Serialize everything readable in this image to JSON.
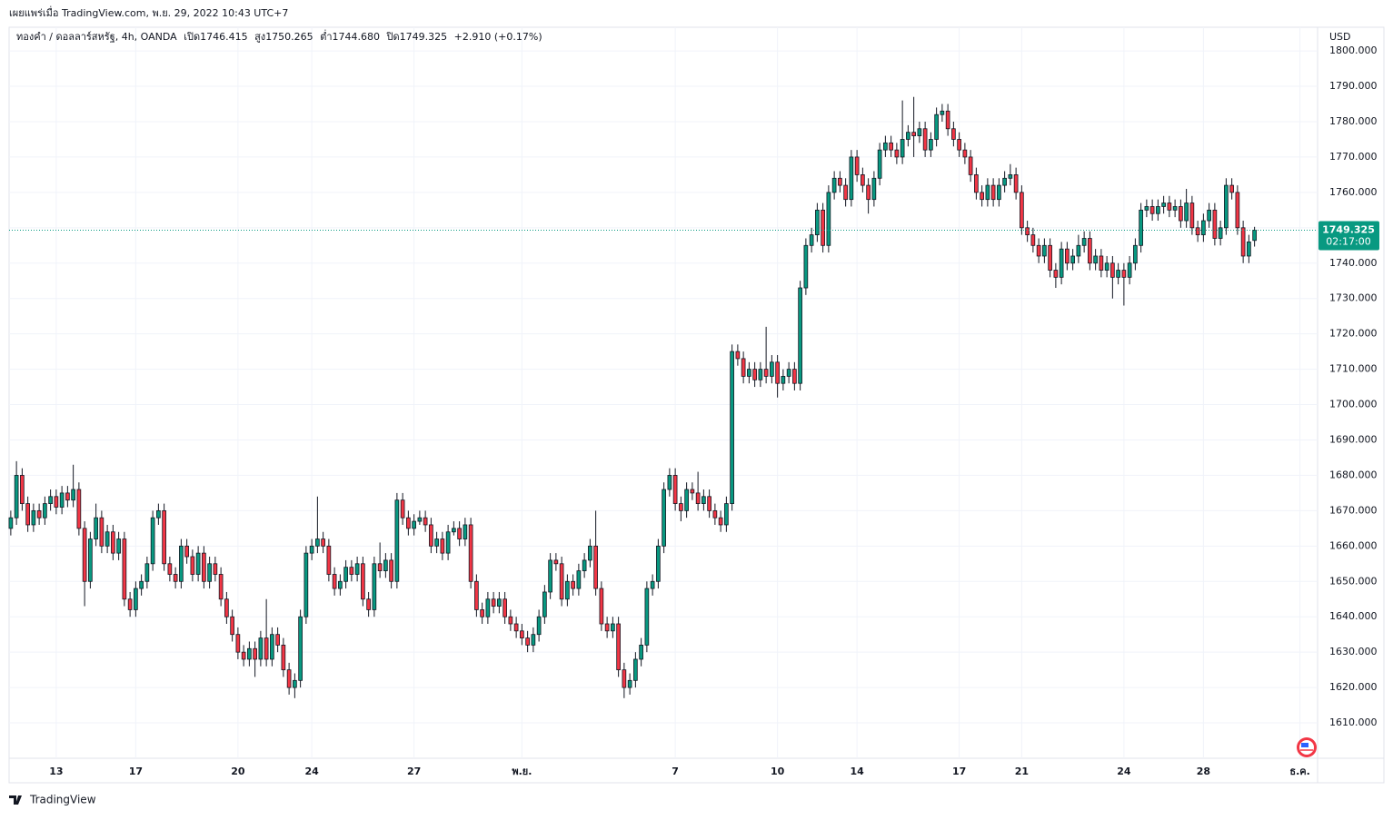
{
  "published": "เผยแพร่เมื่อ TradingView.com, พ.ย. 29, 2022 10:43 UTC+7",
  "header": {
    "symbol": "ทองคำ / ดอลลาร์สหรัฐ, 4h, OANDA",
    "open_label": "เปิด",
    "open": "1746.415",
    "high_label": "สูง",
    "high": "1750.265",
    "low_label": "ต่ำ",
    "low": "1744.680",
    "close_label": "ปิด",
    "close": "1749.325",
    "change": "+2.910 (+0.17%)"
  },
  "footer": "TradingView",
  "chart_data": {
    "type": "candlestick",
    "currency": "USD",
    "up_color": "#089981",
    "down_color": "#f23645",
    "grid": true,
    "last_price": 1749.325,
    "countdown": "02:17:00",
    "xlim": [
      -0.3,
      230.1
    ],
    "ylim": [
      1600,
      1806.7
    ],
    "xticks": [
      {
        "value": 8,
        "label": "13"
      },
      {
        "value": 22,
        "label": "17"
      },
      {
        "value": 40,
        "label": "20"
      },
      {
        "value": 53,
        "label": "24"
      },
      {
        "value": 71,
        "label": "27"
      },
      {
        "value": 90,
        "label": "พ.ย."
      },
      {
        "value": 117,
        "label": "7"
      },
      {
        "value": 135,
        "label": "10"
      },
      {
        "value": 149,
        "label": "14"
      },
      {
        "value": 167,
        "label": "17"
      },
      {
        "value": 178,
        "label": "21"
      },
      {
        "value": 196,
        "label": "24"
      },
      {
        "value": 210,
        "label": "28"
      },
      {
        "value": 227,
        "label": "ธ.ค."
      }
    ],
    "yticks": [
      {
        "value": 1610,
        "label": "1610.000"
      },
      {
        "value": 1620,
        "label": "1620.000"
      },
      {
        "value": 1630,
        "label": "1630.000"
      },
      {
        "value": 1640,
        "label": "1640.000"
      },
      {
        "value": 1650,
        "label": "1650.000"
      },
      {
        "value": 1660,
        "label": "1660.000"
      },
      {
        "value": 1670,
        "label": "1670.000"
      },
      {
        "value": 1680,
        "label": "1680.000"
      },
      {
        "value": 1690,
        "label": "1690.000"
      },
      {
        "value": 1700,
        "label": "1700.000"
      },
      {
        "value": 1710,
        "label": "1710.000"
      },
      {
        "value": 1720,
        "label": "1720.000"
      },
      {
        "value": 1730,
        "label": "1730.000"
      },
      {
        "value": 1740,
        "label": "1740.000"
      },
      {
        "value": 1750,
        "label": "1750.000"
      },
      {
        "value": 1760,
        "label": "1760.000"
      },
      {
        "value": 1770,
        "label": "1770.000"
      },
      {
        "value": 1780,
        "label": "1780.000"
      },
      {
        "value": 1790,
        "label": "1790.000"
      },
      {
        "value": 1800,
        "label": "1800.000"
      }
    ],
    "candles": [
      [
        1665,
        1670,
        1663,
        1668
      ],
      [
        1668,
        1684,
        1666,
        1680
      ],
      [
        1680,
        1682,
        1670,
        1672
      ],
      [
        1672,
        1674,
        1664,
        1666
      ],
      [
        1666,
        1672,
        1664,
        1670
      ],
      [
        1670,
        1672,
        1666,
        1668
      ],
      [
        1668,
        1674,
        1666,
        1672
      ],
      [
        1672,
        1676,
        1670,
        1674
      ],
      [
        1674,
        1676,
        1669,
        1671
      ],
      [
        1671,
        1677,
        1669,
        1675
      ],
      [
        1675,
        1677,
        1671,
        1673
      ],
      [
        1673,
        1683,
        1671,
        1676
      ],
      [
        1676,
        1678,
        1663,
        1665
      ],
      [
        1665,
        1667,
        1643,
        1650
      ],
      [
        1650,
        1664,
        1648,
        1662
      ],
      [
        1662,
        1672,
        1660,
        1668
      ],
      [
        1668,
        1670,
        1658,
        1660
      ],
      [
        1660,
        1666,
        1658,
        1664
      ],
      [
        1664,
        1666,
        1656,
        1658
      ],
      [
        1658,
        1664,
        1656,
        1662
      ],
      [
        1662,
        1664,
        1643,
        1645
      ],
      [
        1645,
        1647,
        1640,
        1642
      ],
      [
        1642,
        1650,
        1640,
        1648
      ],
      [
        1648,
        1652,
        1646,
        1650
      ],
      [
        1650,
        1657,
        1648,
        1655
      ],
      [
        1655,
        1670,
        1653,
        1668
      ],
      [
        1668,
        1672,
        1666,
        1670
      ],
      [
        1670,
        1672,
        1653,
        1655
      ],
      [
        1655,
        1657,
        1650,
        1652
      ],
      [
        1652,
        1654,
        1648,
        1650
      ],
      [
        1650,
        1662,
        1648,
        1660
      ],
      [
        1660,
        1662,
        1655,
        1657
      ],
      [
        1657,
        1659,
        1650,
        1652
      ],
      [
        1652,
        1660,
        1650,
        1658
      ],
      [
        1658,
        1660,
        1648,
        1650
      ],
      [
        1650,
        1657,
        1648,
        1655
      ],
      [
        1655,
        1657,
        1650,
        1652
      ],
      [
        1652,
        1654,
        1643,
        1645
      ],
      [
        1645,
        1647,
        1638,
        1640
      ],
      [
        1640,
        1642,
        1633,
        1635
      ],
      [
        1635,
        1637,
        1628,
        1630
      ],
      [
        1630,
        1632,
        1626,
        1628
      ],
      [
        1628,
        1633,
        1626,
        1631
      ],
      [
        1631,
        1633,
        1623,
        1628
      ],
      [
        1628,
        1636,
        1626,
        1634
      ],
      [
        1634,
        1645,
        1626,
        1628
      ],
      [
        1628,
        1637,
        1626,
        1635
      ],
      [
        1635,
        1637,
        1630,
        1632
      ],
      [
        1632,
        1634,
        1623,
        1625
      ],
      [
        1625,
        1627,
        1618,
        1620
      ],
      [
        1620,
        1624,
        1617,
        1622
      ],
      [
        1622,
        1642,
        1620,
        1640
      ],
      [
        1640,
        1660,
        1638,
        1658
      ],
      [
        1658,
        1662,
        1656,
        1660
      ],
      [
        1660,
        1674,
        1658,
        1662
      ],
      [
        1662,
        1664,
        1658,
        1660
      ],
      [
        1660,
        1662,
        1650,
        1652
      ],
      [
        1652,
        1654,
        1646,
        1648
      ],
      [
        1648,
        1652,
        1646,
        1650
      ],
      [
        1650,
        1656,
        1648,
        1654
      ],
      [
        1654,
        1656,
        1650,
        1652
      ],
      [
        1652,
        1657,
        1650,
        1655
      ],
      [
        1655,
        1657,
        1643,
        1645
      ],
      [
        1645,
        1647,
        1640,
        1642
      ],
      [
        1642,
        1657,
        1640,
        1655
      ],
      [
        1655,
        1661,
        1651,
        1653
      ],
      [
        1653,
        1658,
        1651,
        1656
      ],
      [
        1656,
        1658,
        1648,
        1650
      ],
      [
        1650,
        1675,
        1648,
        1673
      ],
      [
        1673,
        1675,
        1666,
        1668
      ],
      [
        1668,
        1670,
        1663,
        1665
      ],
      [
        1665,
        1669,
        1663,
        1667
      ],
      [
        1667,
        1670,
        1666,
        1668
      ],
      [
        1668,
        1670,
        1664,
        1666
      ],
      [
        1666,
        1668,
        1658,
        1660
      ],
      [
        1660,
        1664,
        1658,
        1662
      ],
      [
        1662,
        1664,
        1656,
        1658
      ],
      [
        1658,
        1666,
        1656,
        1664
      ],
      [
        1664,
        1667,
        1663,
        1665
      ],
      [
        1665,
        1667,
        1660,
        1662
      ],
      [
        1662,
        1668,
        1660,
        1666
      ],
      [
        1666,
        1668,
        1648,
        1650
      ],
      [
        1650,
        1652,
        1640,
        1642
      ],
      [
        1642,
        1644,
        1638,
        1640
      ],
      [
        1640,
        1647,
        1638,
        1645
      ],
      [
        1645,
        1647,
        1641,
        1643
      ],
      [
        1643,
        1647,
        1641,
        1645
      ],
      [
        1645,
        1647,
        1638,
        1640
      ],
      [
        1640,
        1642,
        1636,
        1638
      ],
      [
        1638,
        1640,
        1634,
        1636
      ],
      [
        1636,
        1638,
        1632,
        1634
      ],
      [
        1634,
        1636,
        1630,
        1632
      ],
      [
        1632,
        1637,
        1630,
        1635
      ],
      [
        1635,
        1642,
        1633,
        1640
      ],
      [
        1640,
        1649,
        1638,
        1647
      ],
      [
        1647,
        1658,
        1645,
        1656
      ],
      [
        1656,
        1658,
        1653,
        1655
      ],
      [
        1655,
        1657,
        1643,
        1645
      ],
      [
        1645,
        1652,
        1643,
        1650
      ],
      [
        1650,
        1652,
        1646,
        1648
      ],
      [
        1648,
        1655,
        1646,
        1653
      ],
      [
        1653,
        1658,
        1651,
        1656
      ],
      [
        1656,
        1662,
        1654,
        1660
      ],
      [
        1660,
        1670,
        1646,
        1648
      ],
      [
        1648,
        1650,
        1636,
        1638
      ],
      [
        1638,
        1640,
        1634,
        1636
      ],
      [
        1636,
        1640,
        1634,
        1638
      ],
      [
        1638,
        1640,
        1623,
        1625
      ],
      [
        1625,
        1627,
        1617,
        1620
      ],
      [
        1620,
        1624,
        1618,
        1622
      ],
      [
        1622,
        1630,
        1620,
        1628
      ],
      [
        1628,
        1634,
        1626,
        1632
      ],
      [
        1632,
        1650,
        1630,
        1648
      ],
      [
        1648,
        1652,
        1646,
        1650
      ],
      [
        1650,
        1662,
        1648,
        1660
      ],
      [
        1660,
        1678,
        1658,
        1676
      ],
      [
        1676,
        1682,
        1674,
        1680
      ],
      [
        1680,
        1682,
        1670,
        1672
      ],
      [
        1672,
        1674,
        1667,
        1670
      ],
      [
        1670,
        1678,
        1668,
        1676
      ],
      [
        1676,
        1678,
        1673,
        1675
      ],
      [
        1675,
        1681,
        1670,
        1672
      ],
      [
        1672,
        1676,
        1670,
        1674
      ],
      [
        1674,
        1676,
        1668,
        1670
      ],
      [
        1670,
        1672,
        1666,
        1668
      ],
      [
        1668,
        1670,
        1664,
        1666
      ],
      [
        1666,
        1674,
        1664,
        1672
      ],
      [
        1672,
        1717,
        1670,
        1715
      ],
      [
        1715,
        1717,
        1711,
        1713
      ],
      [
        1713,
        1715,
        1706,
        1708
      ],
      [
        1708,
        1712,
        1706,
        1710
      ],
      [
        1710,
        1712,
        1705,
        1707
      ],
      [
        1707,
        1712,
        1705,
        1710
      ],
      [
        1710,
        1722,
        1706,
        1708
      ],
      [
        1708,
        1714,
        1706,
        1712
      ],
      [
        1712,
        1714,
        1702,
        1706
      ],
      [
        1706,
        1710,
        1704,
        1708
      ],
      [
        1708,
        1712,
        1706,
        1710
      ],
      [
        1710,
        1712,
        1704,
        1706
      ],
      [
        1706,
        1735,
        1704,
        1733
      ],
      [
        1733,
        1747,
        1731,
        1745
      ],
      [
        1745,
        1750,
        1743,
        1748
      ],
      [
        1748,
        1757,
        1746,
        1755
      ],
      [
        1755,
        1757,
        1743,
        1745
      ],
      [
        1745,
        1762,
        1743,
        1760
      ],
      [
        1760,
        1766,
        1758,
        1764
      ],
      [
        1764,
        1766,
        1760,
        1762
      ],
      [
        1762,
        1764,
        1756,
        1758
      ],
      [
        1758,
        1772,
        1756,
        1770
      ],
      [
        1770,
        1772,
        1763,
        1765
      ],
      [
        1765,
        1767,
        1760,
        1762
      ],
      [
        1762,
        1764,
        1754,
        1758
      ],
      [
        1758,
        1766,
        1756,
        1764
      ],
      [
        1764,
        1774,
        1762,
        1772
      ],
      [
        1772,
        1776,
        1770,
        1774
      ],
      [
        1774,
        1776,
        1770,
        1772
      ],
      [
        1772,
        1774,
        1768,
        1770
      ],
      [
        1770,
        1786,
        1768,
        1775
      ],
      [
        1775,
        1779,
        1773,
        1777
      ],
      [
        1777,
        1787,
        1770,
        1776
      ],
      [
        1776,
        1780,
        1774,
        1778
      ],
      [
        1778,
        1780,
        1770,
        1772
      ],
      [
        1772,
        1777,
        1770,
        1775
      ],
      [
        1775,
        1784,
        1773,
        1782
      ],
      [
        1782,
        1785,
        1780,
        1783
      ],
      [
        1783,
        1785,
        1776,
        1778
      ],
      [
        1778,
        1780,
        1773,
        1775
      ],
      [
        1775,
        1777,
        1770,
        1772
      ],
      [
        1772,
        1774,
        1768,
        1770
      ],
      [
        1770,
        1772,
        1763,
        1765
      ],
      [
        1765,
        1767,
        1758,
        1760
      ],
      [
        1760,
        1762,
        1756,
        1758
      ],
      [
        1758,
        1764,
        1756,
        1762
      ],
      [
        1762,
        1764,
        1756,
        1758
      ],
      [
        1758,
        1764,
        1756,
        1762
      ],
      [
        1762,
        1766,
        1760,
        1764
      ],
      [
        1764,
        1768,
        1762,
        1765
      ],
      [
        1765,
        1767,
        1758,
        1760
      ],
      [
        1760,
        1762,
        1748,
        1750
      ],
      [
        1750,
        1752,
        1746,
        1748
      ],
      [
        1748,
        1750,
        1743,
        1745
      ],
      [
        1745,
        1747,
        1740,
        1742
      ],
      [
        1742,
        1747,
        1740,
        1745
      ],
      [
        1745,
        1747,
        1736,
        1738
      ],
      [
        1738,
        1740,
        1733,
        1736
      ],
      [
        1736,
        1746,
        1734,
        1744
      ],
      [
        1744,
        1746,
        1738,
        1740
      ],
      [
        1740,
        1744,
        1738,
        1742
      ],
      [
        1742,
        1748,
        1740,
        1745
      ],
      [
        1745,
        1749,
        1743,
        1747
      ],
      [
        1747,
        1749,
        1738,
        1740
      ],
      [
        1740,
        1744,
        1738,
        1742
      ],
      [
        1742,
        1744,
        1736,
        1738
      ],
      [
        1738,
        1742,
        1736,
        1740
      ],
      [
        1740,
        1742,
        1730,
        1736
      ],
      [
        1736,
        1740,
        1734,
        1738
      ],
      [
        1738,
        1740,
        1728,
        1736
      ],
      [
        1736,
        1742,
        1734,
        1740
      ],
      [
        1740,
        1747,
        1738,
        1745
      ],
      [
        1745,
        1757,
        1743,
        1755
      ],
      [
        1755,
        1758,
        1753,
        1756
      ],
      [
        1756,
        1758,
        1752,
        1754
      ],
      [
        1754,
        1758,
        1752,
        1756
      ],
      [
        1756,
        1759,
        1754,
        1757
      ],
      [
        1757,
        1759,
        1753,
        1755
      ],
      [
        1755,
        1758,
        1753,
        1756
      ],
      [
        1756,
        1758,
        1750,
        1752
      ],
      [
        1752,
        1761,
        1750,
        1757
      ],
      [
        1757,
        1759,
        1748,
        1750
      ],
      [
        1750,
        1752,
        1746,
        1748
      ],
      [
        1748,
        1754,
        1746,
        1752
      ],
      [
        1752,
        1757,
        1750,
        1755
      ],
      [
        1755,
        1757,
        1745,
        1747
      ],
      [
        1747,
        1752,
        1745,
        1750
      ],
      [
        1750,
        1764,
        1748,
        1762
      ],
      [
        1762,
        1764,
        1758,
        1760
      ],
      [
        1760,
        1762,
        1748,
        1750
      ],
      [
        1750,
        1752,
        1740,
        1742
      ],
      [
        1742,
        1748,
        1740,
        1746
      ],
      [
        1746.415,
        1750.265,
        1744.68,
        1749.325
      ]
    ]
  }
}
